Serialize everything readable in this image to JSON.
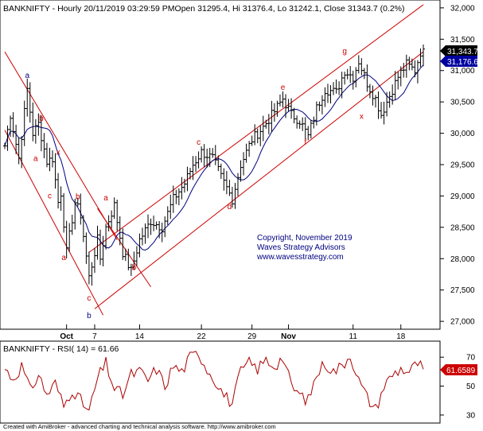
{
  "header": {
    "title": "BANKNIFTY - Hourly 20/11/2019 03:29:59 PMOpen 31295.4, Hi 31376.4, Lo 31242.1, Close 31343.7 (0.2%)"
  },
  "footer": {
    "credit": "Created with AmiBroker - advanced charting and technical analysis software. http://www.amibroker.com"
  },
  "colors": {
    "price_bars": "#000000",
    "moving_average": "#000080",
    "channels": "#cc0000",
    "wave_labels": "#cc0000",
    "wave_labels_alt": "#000080",
    "rsi_line": "#aa0000",
    "watermark": "#000080",
    "close_badge": "#000000",
    "ma_badge": "#0000a0",
    "rsi_badge": "#cc0000"
  },
  "chart_data": [
    {
      "type": "candlestick",
      "title": "BANKNIFTY - Hourly 20/11/2019 03:29:59 PMOpen 31295.4, Hi 31376.4, Lo 31242.1, Close 31343.7 (0.2%)",
      "ylim": [
        26900,
        32100
      ],
      "y_ticks": [
        "32,000",
        "31,500",
        "31,000",
        "30,500",
        "30,000",
        "29,500",
        "29,000",
        "28,500",
        "28,000",
        "27,500",
        "27,000"
      ],
      "y_tick_values": [
        32000,
        31500,
        31000,
        30500,
        30000,
        29500,
        29000,
        28500,
        28000,
        27500,
        27000
      ],
      "x_ticks": [
        {
          "label": "Oct",
          "bar": 22
        },
        {
          "label": "7",
          "bar": 32
        },
        {
          "label": "14",
          "bar": 48
        },
        {
          "label": "22",
          "bar": 70
        },
        {
          "label": "29",
          "bar": 88
        },
        {
          "label": "Nov",
          "bar": 101
        },
        {
          "label": "11",
          "bar": 124
        },
        {
          "label": "18",
          "bar": 141
        }
      ],
      "bar_count": 150,
      "price_path": [
        {
          "bar": 0,
          "price": 29800
        },
        {
          "bar": 2,
          "price": 30300
        },
        {
          "bar": 5,
          "price": 29600
        },
        {
          "bar": 8,
          "price": 30700
        },
        {
          "bar": 10,
          "price": 30000
        },
        {
          "bar": 12,
          "price": 30150
        },
        {
          "bar": 15,
          "price": 29550
        },
        {
          "bar": 17,
          "price": 29600
        },
        {
          "bar": 19,
          "price": 28900
        },
        {
          "bar": 20,
          "price": 29050
        },
        {
          "bar": 22,
          "price": 28100
        },
        {
          "bar": 25,
          "price": 28900
        },
        {
          "bar": 27,
          "price": 28700
        },
        {
          "bar": 30,
          "price": 27700
        },
        {
          "bar": 33,
          "price": 28300
        },
        {
          "bar": 34,
          "price": 28000
        },
        {
          "bar": 36,
          "price": 28500
        },
        {
          "bar": 39,
          "price": 28850
        },
        {
          "bar": 42,
          "price": 28100
        },
        {
          "bar": 45,
          "price": 27800
        },
        {
          "bar": 48,
          "price": 28300
        },
        {
          "bar": 52,
          "price": 28600
        },
        {
          "bar": 56,
          "price": 28500
        },
        {
          "bar": 60,
          "price": 28950
        },
        {
          "bar": 64,
          "price": 29200
        },
        {
          "bar": 67,
          "price": 29500
        },
        {
          "bar": 70,
          "price": 29700
        },
        {
          "bar": 74,
          "price": 29600
        },
        {
          "bar": 77,
          "price": 29300
        },
        {
          "bar": 81,
          "price": 28950
        },
        {
          "bar": 84,
          "price": 29500
        },
        {
          "bar": 88,
          "price": 29900
        },
        {
          "bar": 92,
          "price": 30100
        },
        {
          "bar": 96,
          "price": 30350
        },
        {
          "bar": 99,
          "price": 30550
        },
        {
          "bar": 102,
          "price": 30300
        },
        {
          "bar": 105,
          "price": 30200
        },
        {
          "bar": 108,
          "price": 29950
        },
        {
          "bar": 111,
          "price": 30400
        },
        {
          "bar": 114,
          "price": 30700
        },
        {
          "bar": 118,
          "price": 30650
        },
        {
          "bar": 121,
          "price": 31000
        },
        {
          "bar": 124,
          "price": 30900
        },
        {
          "bar": 126,
          "price": 31150
        },
        {
          "bar": 129,
          "price": 30800
        },
        {
          "bar": 132,
          "price": 30550
        },
        {
          "bar": 134,
          "price": 30300
        },
        {
          "bar": 137,
          "price": 30600
        },
        {
          "bar": 140,
          "price": 30900
        },
        {
          "bar": 143,
          "price": 31100
        },
        {
          "bar": 146,
          "price": 31000
        },
        {
          "bar": 148,
          "price": 31300
        },
        {
          "bar": 149,
          "price": 31343.7
        }
      ],
      "overlays": [
        {
          "type": "moving_average",
          "last_value": "31,176.6"
        }
      ],
      "close_label": "31,343.7",
      "ma_label": "31,176.6",
      "channels": [
        {
          "name": "down-upper",
          "from": {
            "bar": 0,
            "price": 31300
          },
          "to": {
            "bar": 40,
            "price": 28300
          }
        },
        {
          "name": "down-lower",
          "from": {
            "bar": 0,
            "price": 30050
          },
          "to": {
            "bar": 35,
            "price": 27100
          }
        },
        {
          "name": "up-upper",
          "from": {
            "bar": 30,
            "price": 28100
          },
          "to": {
            "bar": 149,
            "price": 32050
          }
        },
        {
          "name": "up-lower",
          "from": {
            "bar": 32,
            "price": 27200
          },
          "to": {
            "bar": 149,
            "price": 31300
          }
        },
        {
          "name": "diagonal",
          "from": {
            "bar": 33,
            "price": 28800
          },
          "to": {
            "bar": 52,
            "price": 27550
          }
        }
      ],
      "wave_labels": [
        {
          "text": "a",
          "bar": 8,
          "price": 30880,
          "color": "alt"
        },
        {
          "text": "b",
          "bar": 13,
          "price": 30200,
          "color": "main"
        },
        {
          "text": "a",
          "bar": 11,
          "price": 29560,
          "color": "main"
        },
        {
          "text": "x",
          "bar": 19,
          "price": 29660,
          "color": "main"
        },
        {
          "text": "c",
          "bar": 16,
          "price": 28960,
          "color": "main"
        },
        {
          "text": "b",
          "bar": 26,
          "price": 28950,
          "color": "main"
        },
        {
          "text": "a",
          "bar": 21,
          "price": 27980,
          "color": "main"
        },
        {
          "text": "a",
          "bar": 36,
          "price": 28930,
          "color": "main"
        },
        {
          "text": "c",
          "bar": 30,
          "price": 27330,
          "color": "main"
        },
        {
          "text": "b",
          "bar": 30,
          "price": 27050,
          "color": "alt"
        },
        {
          "text": "b",
          "bar": 46,
          "price": 27820,
          "color": "main"
        },
        {
          "text": "c",
          "bar": 69,
          "price": 29820,
          "color": "main"
        },
        {
          "text": "d",
          "bar": 80,
          "price": 28790,
          "color": "main"
        },
        {
          "text": "e",
          "bar": 99,
          "price": 30690,
          "color": "main"
        },
        {
          "text": "f",
          "bar": 107,
          "price": 29820,
          "color": "main"
        },
        {
          "text": "g",
          "bar": 121,
          "price": 31270,
          "color": "main"
        },
        {
          "text": "x",
          "bar": 127,
          "price": 30230,
          "color": "main"
        }
      ],
      "watermark": [
        "Copyright, November 2019",
        "Waves Strategy Advisors",
        "www.wavesstrategy.com"
      ]
    },
    {
      "type": "line",
      "title": "BANKNIFTY - RSI( 14) = 61.66",
      "series": [
        {
          "name": "RSI( 14)",
          "last_value": "61.6589"
        }
      ],
      "ylim": [
        25,
        80
      ],
      "y_ticks": [
        "70",
        "50",
        "30"
      ],
      "y_tick_values": [
        70,
        50,
        30
      ],
      "rsi_path": [
        {
          "bar": 0,
          "rsi": 62
        },
        {
          "bar": 3,
          "rsi": 55
        },
        {
          "bar": 6,
          "rsi": 64
        },
        {
          "bar": 9,
          "rsi": 47
        },
        {
          "bar": 12,
          "rsi": 58
        },
        {
          "bar": 15,
          "rsi": 44
        },
        {
          "bar": 18,
          "rsi": 52
        },
        {
          "bar": 21,
          "rsi": 36
        },
        {
          "bar": 24,
          "rsi": 48
        },
        {
          "bar": 27,
          "rsi": 40
        },
        {
          "bar": 30,
          "rsi": 32
        },
        {
          "bar": 33,
          "rsi": 55
        },
        {
          "bar": 36,
          "rsi": 66
        },
        {
          "bar": 39,
          "rsi": 48
        },
        {
          "bar": 42,
          "rsi": 44
        },
        {
          "bar": 45,
          "rsi": 58
        },
        {
          "bar": 48,
          "rsi": 60
        },
        {
          "bar": 51,
          "rsi": 54
        },
        {
          "bar": 54,
          "rsi": 62
        },
        {
          "bar": 57,
          "rsi": 50
        },
        {
          "bar": 60,
          "rsi": 64
        },
        {
          "bar": 63,
          "rsi": 60
        },
        {
          "bar": 66,
          "rsi": 70
        },
        {
          "bar": 69,
          "rsi": 73
        },
        {
          "bar": 72,
          "rsi": 62
        },
        {
          "bar": 75,
          "rsi": 54
        },
        {
          "bar": 78,
          "rsi": 44
        },
        {
          "bar": 81,
          "rsi": 38
        },
        {
          "bar": 84,
          "rsi": 60
        },
        {
          "bar": 87,
          "rsi": 66
        },
        {
          "bar": 90,
          "rsi": 62
        },
        {
          "bar": 93,
          "rsi": 68
        },
        {
          "bar": 96,
          "rsi": 64
        },
        {
          "bar": 99,
          "rsi": 70
        },
        {
          "bar": 102,
          "rsi": 50
        },
        {
          "bar": 105,
          "rsi": 44
        },
        {
          "bar": 108,
          "rsi": 40
        },
        {
          "bar": 111,
          "rsi": 58
        },
        {
          "bar": 114,
          "rsi": 66
        },
        {
          "bar": 117,
          "rsi": 60
        },
        {
          "bar": 120,
          "rsi": 64
        },
        {
          "bar": 123,
          "rsi": 72
        },
        {
          "bar": 126,
          "rsi": 54
        },
        {
          "bar": 129,
          "rsi": 42
        },
        {
          "bar": 132,
          "rsi": 34
        },
        {
          "bar": 135,
          "rsi": 50
        },
        {
          "bar": 138,
          "rsi": 58
        },
        {
          "bar": 141,
          "rsi": 62
        },
        {
          "bar": 144,
          "rsi": 60
        },
        {
          "bar": 147,
          "rsi": 66
        },
        {
          "bar": 149,
          "rsi": 61.66
        }
      ]
    }
  ]
}
